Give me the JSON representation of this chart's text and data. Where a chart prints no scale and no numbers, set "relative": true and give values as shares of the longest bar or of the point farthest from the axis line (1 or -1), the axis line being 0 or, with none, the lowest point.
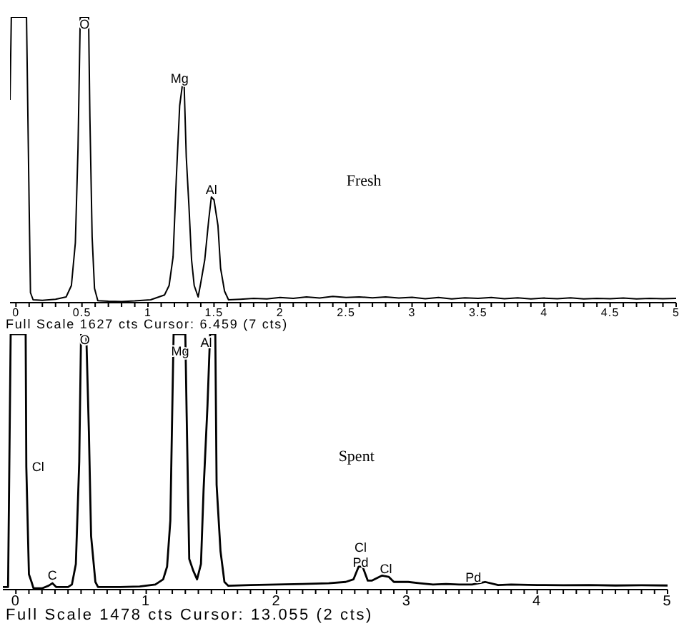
{
  "chart_data": [
    {
      "type": "line",
      "title": "Fresh",
      "relative": true,
      "x": [
        -0.045,
        -0.035,
        0.08,
        0.1,
        0.11,
        0.13,
        0.2,
        0.3,
        0.38,
        0.42,
        0.45,
        0.47,
        0.487,
        0.55,
        0.56,
        0.577,
        0.595,
        0.62,
        0.7,
        0.8,
        0.9,
        1.02,
        1.125,
        1.16,
        1.19,
        1.215,
        1.24,
        1.26,
        1.274,
        1.29,
        1.31,
        1.33,
        1.35,
        1.38,
        1.4,
        1.43,
        1.46,
        1.48,
        1.5,
        1.53,
        1.55,
        1.58,
        1.61,
        1.7,
        1.8,
        1.9,
        2.0,
        2.1,
        2.2,
        2.3,
        2.4,
        2.5,
        2.6,
        2.7,
        2.8,
        2.9,
        3.0,
        3.1,
        3.2,
        3.3,
        3.4,
        3.5,
        3.6,
        3.7,
        3.8,
        3.9,
        4.0,
        4.1,
        4.2,
        4.3,
        4.4,
        4.5,
        4.6,
        4.7,
        4.8,
        4.9,
        5.0
      ],
      "series": [
        {
          "color": "#000000",
          "values": [
            0.71,
            1,
            1,
            0.34,
            0.035,
            0.01,
            0.008,
            0.012,
            0.02,
            0.06,
            0.21,
            0.54,
            1,
            1,
            0.65,
            0.23,
            0.05,
            0.007,
            0.005,
            0.004,
            0.006,
            0.01,
            0.027,
            0.06,
            0.16,
            0.44,
            0.69,
            0.76,
            0.76,
            0.51,
            0.34,
            0.15,
            0.06,
            0.02,
            0.07,
            0.15,
            0.29,
            0.37,
            0.36,
            0.27,
            0.12,
            0.04,
            0.01,
            0.012,
            0.015,
            0.013,
            0.018,
            0.015,
            0.02,
            0.016,
            0.022,
            0.018,
            0.02,
            0.017,
            0.02,
            0.016,
            0.019,
            0.014,
            0.018,
            0.013,
            0.017,
            0.015,
            0.018,
            0.014,
            0.017,
            0.013,
            0.016,
            0.014,
            0.017,
            0.013,
            0.015,
            0.014,
            0.016,
            0.013,
            0.015,
            0.014,
            0.015
          ]
        }
      ],
      "xlim": [
        -0.045,
        5
      ],
      "xticks": [
        0,
        {
          "value": 0.1,
          "label": null
        },
        {
          "value": 0.2,
          "label": null
        },
        {
          "value": 0.3,
          "label": null
        },
        {
          "value": 0.4,
          "label": null
        },
        0.5,
        {
          "value": 0.6,
          "label": null
        },
        {
          "value": 0.7,
          "label": null
        },
        {
          "value": 0.8,
          "label": null
        },
        {
          "value": 0.9,
          "label": null
        },
        1,
        {
          "value": 1.1,
          "label": null
        },
        {
          "value": 1.2,
          "label": null
        },
        {
          "value": 1.3,
          "label": null
        },
        {
          "value": 1.4,
          "label": null
        },
        1.5,
        {
          "value": 1.6,
          "label": null
        },
        {
          "value": 1.7,
          "label": null
        },
        {
          "value": 1.8,
          "label": null
        },
        {
          "value": 1.9,
          "label": null
        },
        2,
        {
          "value": 2.1,
          "label": null
        },
        {
          "value": 2.2,
          "label": null
        },
        {
          "value": 2.3,
          "label": null
        },
        {
          "value": 2.4,
          "label": null
        },
        2.5,
        {
          "value": 2.6,
          "label": null
        },
        {
          "value": 2.7,
          "label": null
        },
        {
          "value": 2.8,
          "label": null
        },
        {
          "value": 2.9,
          "label": null
        },
        3,
        {
          "value": 3.1,
          "label": null
        },
        {
          "value": 3.2,
          "label": null
        },
        {
          "value": 3.3,
          "label": null
        },
        {
          "value": 3.4,
          "label": null
        },
        3.5,
        {
          "value": 3.6,
          "label": null
        },
        {
          "value": 3.7,
          "label": null
        },
        {
          "value": 3.8,
          "label": null
        },
        {
          "value": 3.9,
          "label": null
        },
        4,
        {
          "value": 4.1,
          "label": null
        },
        {
          "value": 4.2,
          "label": null
        },
        {
          "value": 4.3,
          "label": null
        },
        {
          "value": 4.4,
          "label": null
        },
        4.5,
        {
          "value": 4.6,
          "label": null
        },
        {
          "value": 4.7,
          "label": null
        },
        {
          "value": 4.8,
          "label": null
        },
        {
          "value": 4.9,
          "label": null
        },
        5
      ],
      "annotations": [
        {
          "text": "O",
          "x": 0.52,
          "y": 0.96
        },
        {
          "text": "Mg",
          "x": 1.24,
          "y": 0.77
        },
        {
          "text": "Al",
          "x": 1.48,
          "y": 0.38
        },
        "Full Scale 1627 cts Cursor: 6.459 (7 cts)"
      ]
    },
    {
      "type": "line",
      "title": "Spent",
      "relative": true,
      "x": [
        -0.1,
        -0.06,
        -0.04,
        0.075,
        0.08,
        0.1,
        0.12,
        0.135,
        0.2,
        0.25,
        0.28,
        0.31,
        0.4,
        0.43,
        0.46,
        0.486,
        0.5,
        0.54,
        0.56,
        0.577,
        0.61,
        0.63,
        0.8,
        0.95,
        1.07,
        1.13,
        1.16,
        1.185,
        1.21,
        1.3,
        1.31,
        1.33,
        1.36,
        1.39,
        1.42,
        1.44,
        1.47,
        1.49,
        1.53,
        1.54,
        1.57,
        1.6,
        1.63,
        1.8,
        2.0,
        2.2,
        2.4,
        2.53,
        2.59,
        2.63,
        2.66,
        2.7,
        2.73,
        2.81,
        2.86,
        2.9,
        3.01,
        3.1,
        3.2,
        3.3,
        3.4,
        3.5,
        3.6,
        3.7,
        3.8,
        4.0,
        4.2,
        4.4,
        4.6,
        4.8,
        5.0
      ],
      "series": [
        {
          "color": "#000000",
          "values": [
            0.01,
            0.01,
            1,
            1,
            0.48,
            0.06,
            0.03,
            0.005,
            0.005,
            0.015,
            0.025,
            0.01,
            0.01,
            0.02,
            0.1,
            0.5,
            1,
            1,
            0.62,
            0.21,
            0.03,
            0.01,
            0.01,
            0.012,
            0.02,
            0.04,
            0.09,
            0.27,
            1,
            1,
            0.69,
            0.12,
            0.075,
            0.04,
            0.1,
            0.39,
            0.72,
            1,
            1,
            0.41,
            0.15,
            0.03,
            0.015,
            0.018,
            0.02,
            0.022,
            0.025,
            0.03,
            0.04,
            0.09,
            0.09,
            0.035,
            0.035,
            0.055,
            0.05,
            0.03,
            0.03,
            0.025,
            0.02,
            0.022,
            0.02,
            0.02,
            0.03,
            0.018,
            0.02,
            0.018,
            0.017,
            0.018,
            0.016,
            0.017,
            0.016
          ]
        }
      ],
      "xlim": [
        -0.1,
        5
      ],
      "xticks": [
        0,
        {
          "value": 0.1,
          "label": null
        },
        {
          "value": 0.2,
          "label": null
        },
        {
          "value": 0.3,
          "label": null
        },
        {
          "value": 0.4,
          "label": null
        },
        {
          "value": 0.5,
          "label": null
        },
        {
          "value": 0.6,
          "label": null
        },
        {
          "value": 0.7,
          "label": null
        },
        {
          "value": 0.8,
          "label": null
        },
        {
          "value": 0.9,
          "label": null
        },
        1,
        {
          "value": 1.1,
          "label": null
        },
        {
          "value": 1.2,
          "label": null
        },
        {
          "value": 1.3,
          "label": null
        },
        {
          "value": 1.4,
          "label": null
        },
        {
          "value": 1.5,
          "label": null
        },
        {
          "value": 1.6,
          "label": null
        },
        {
          "value": 1.7,
          "label": null
        },
        {
          "value": 1.8,
          "label": null
        },
        {
          "value": 1.9,
          "label": null
        },
        2,
        {
          "value": 2.1,
          "label": null
        },
        {
          "value": 2.2,
          "label": null
        },
        {
          "value": 2.3,
          "label": null
        },
        {
          "value": 2.4,
          "label": null
        },
        {
          "value": 2.5,
          "label": null
        },
        {
          "value": 2.6,
          "label": null
        },
        {
          "value": 2.7,
          "label": null
        },
        {
          "value": 2.8,
          "label": null
        },
        {
          "value": 2.9,
          "label": null
        },
        3,
        {
          "value": 3.1,
          "label": null
        },
        {
          "value": 3.2,
          "label": null
        },
        {
          "value": 3.3,
          "label": null
        },
        {
          "value": 3.4,
          "label": null
        },
        {
          "value": 3.5,
          "label": null
        },
        {
          "value": 3.6,
          "label": null
        },
        {
          "value": 3.7,
          "label": null
        },
        {
          "value": 3.8,
          "label": null
        },
        {
          "value": 3.9,
          "label": null
        },
        4,
        {
          "value": 4.1,
          "label": null
        },
        {
          "value": 4.2,
          "label": null
        },
        {
          "value": 4.3,
          "label": null
        },
        {
          "value": 4.4,
          "label": null
        },
        {
          "value": 4.5,
          "label": null
        },
        {
          "value": 4.6,
          "label": null
        },
        {
          "value": 4.7,
          "label": null
        },
        {
          "value": 4.8,
          "label": null
        },
        {
          "value": 4.9,
          "label": null
        },
        5
      ],
      "annotations": [
        {
          "text": "Cl",
          "x": 0.08,
          "y": 0.48
        },
        {
          "text": "C",
          "x": 0.28,
          "y": 0.04
        },
        {
          "text": "O",
          "x": 0.53,
          "y": 0.96
        },
        {
          "text": "Mg",
          "x": 1.26,
          "y": 0.915
        },
        {
          "text": "Al",
          "x": 1.46,
          "y": 0.95
        },
        {
          "text": "Cl",
          "x": 2.645,
          "y": 0.09
        },
        {
          "text": "Pd",
          "x": 2.645,
          "y": 0.09
        },
        {
          "text": "Cl",
          "x": 2.84,
          "y": 0.065
        },
        {
          "text": "Pd",
          "x": 3.51,
          "y": 0.03
        },
        "Full Scale 1478 cts Cursor: 13.055 (2 cts)"
      ]
    }
  ]
}
